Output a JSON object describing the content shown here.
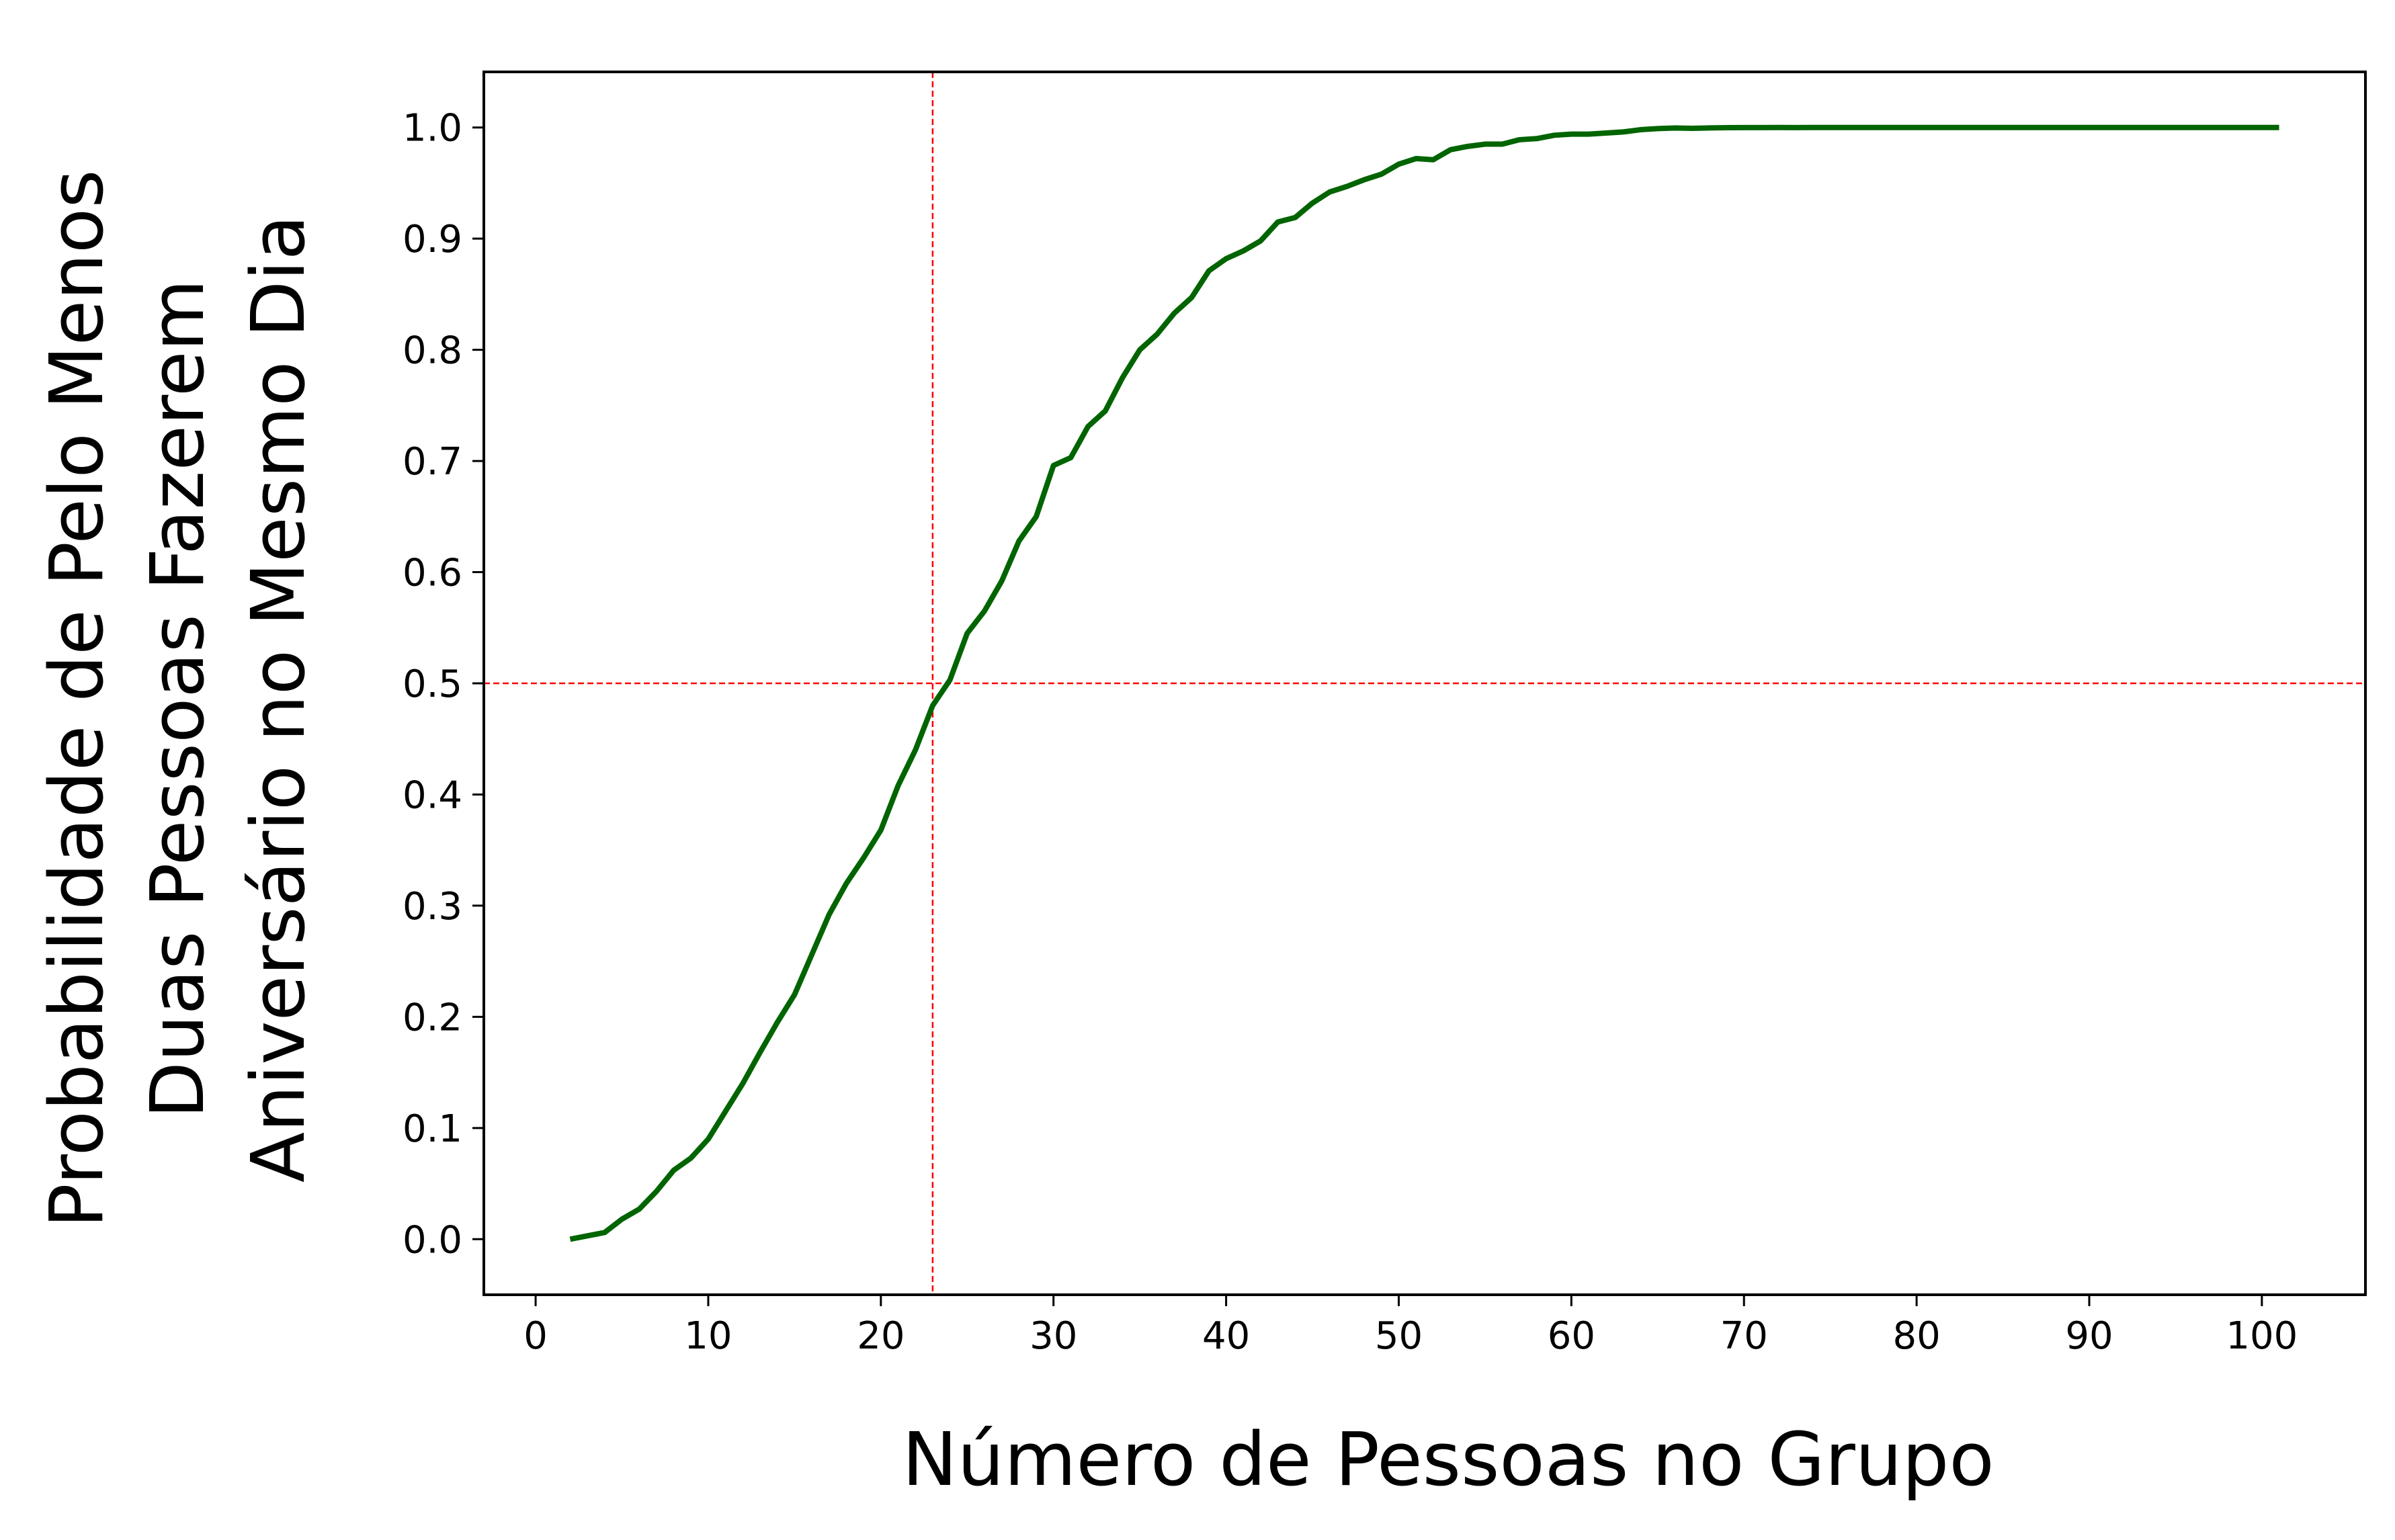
{
  "chart_data": {
    "type": "line",
    "xlabel": "Número de Pessoas no Grupo",
    "ylabel_lines": [
      "Probabilidade de Pelo Menos",
      "Duas Pessoas Fazerem",
      "Aniversário no Mesmo Dia"
    ],
    "xlim": [
      -3,
      106
    ],
    "ylim": [
      -0.05,
      1.05
    ],
    "x_ticks": [
      0,
      10,
      20,
      30,
      40,
      50,
      60,
      70,
      80,
      90,
      100
    ],
    "x_tick_labels": [
      "0",
      "10",
      "20",
      "30",
      "40",
      "50",
      "60",
      "70",
      "80",
      "90",
      "100"
    ],
    "y_ticks": [
      0.0,
      0.1,
      0.2,
      0.3,
      0.4,
      0.5,
      0.6,
      0.7,
      0.8,
      0.9,
      1.0
    ],
    "y_tick_labels": [
      "0.0",
      "0.1",
      "0.2",
      "0.3",
      "0.4",
      "0.5",
      "0.6",
      "0.7",
      "0.8",
      "0.9",
      "1.0"
    ],
    "grid": false,
    "series": [
      {
        "color": "#006400",
        "x": [
          2,
          3,
          4,
          5,
          6,
          7,
          8,
          9,
          10,
          11,
          12,
          13,
          14,
          15,
          16,
          17,
          18,
          19,
          20,
          21,
          22,
          23,
          24,
          25,
          26,
          27,
          28,
          29,
          30,
          31,
          32,
          33,
          34,
          35,
          36,
          37,
          38,
          39,
          40,
          41,
          42,
          43,
          44,
          45,
          46,
          47,
          48,
          49,
          50,
          51,
          52,
          53,
          54,
          55,
          56,
          57,
          58,
          59,
          60,
          61,
          62,
          63,
          64,
          65,
          66,
          67,
          68,
          69,
          70,
          71,
          72,
          73,
          74,
          75,
          76,
          77,
          78,
          79,
          80,
          81,
          82,
          83,
          84,
          85,
          86,
          87,
          88,
          89,
          90,
          91,
          92,
          93,
          94,
          95,
          96,
          97,
          98,
          99,
          100,
          101
        ],
        "y": [
          0.0,
          0.003,
          0.006,
          0.018,
          0.027,
          0.043,
          0.062,
          0.073,
          0.09,
          0.115,
          0.14,
          0.168,
          0.195,
          0.22,
          0.256,
          0.292,
          0.32,
          0.343,
          0.368,
          0.408,
          0.44,
          0.48,
          0.503,
          0.545,
          0.565,
          0.592,
          0.628,
          0.65,
          0.696,
          0.703,
          0.731,
          0.745,
          0.775,
          0.8,
          0.814,
          0.833,
          0.847,
          0.871,
          0.882,
          0.889,
          0.898,
          0.915,
          0.919,
          0.932,
          0.942,
          0.947,
          0.953,
          0.958,
          0.967,
          0.972,
          0.971,
          0.98,
          0.983,
          0.985,
          0.985,
          0.989,
          0.99,
          0.993,
          0.994,
          0.994,
          0.995,
          0.996,
          0.998,
          0.999,
          0.9995,
          0.9992,
          0.9996,
          0.9998,
          0.9999,
          0.9999,
          1.0,
          0.9999,
          1.0,
          1.0,
          1.0,
          1.0,
          1.0,
          1.0,
          1.0,
          1.0,
          1.0,
          1.0,
          1.0,
          1.0,
          1.0,
          1.0,
          1.0,
          1.0,
          1.0,
          1.0,
          1.0,
          1.0,
          1.0,
          1.0,
          1.0,
          1.0,
          1.0,
          1.0,
          1.0,
          1.0
        ]
      }
    ],
    "reference_lines": [
      {
        "orientation": "vertical",
        "value": 23,
        "color": "#ff0000",
        "style": "dashed"
      },
      {
        "orientation": "horizontal",
        "value": 0.5,
        "color": "#ff0000",
        "style": "dashed"
      }
    ]
  }
}
